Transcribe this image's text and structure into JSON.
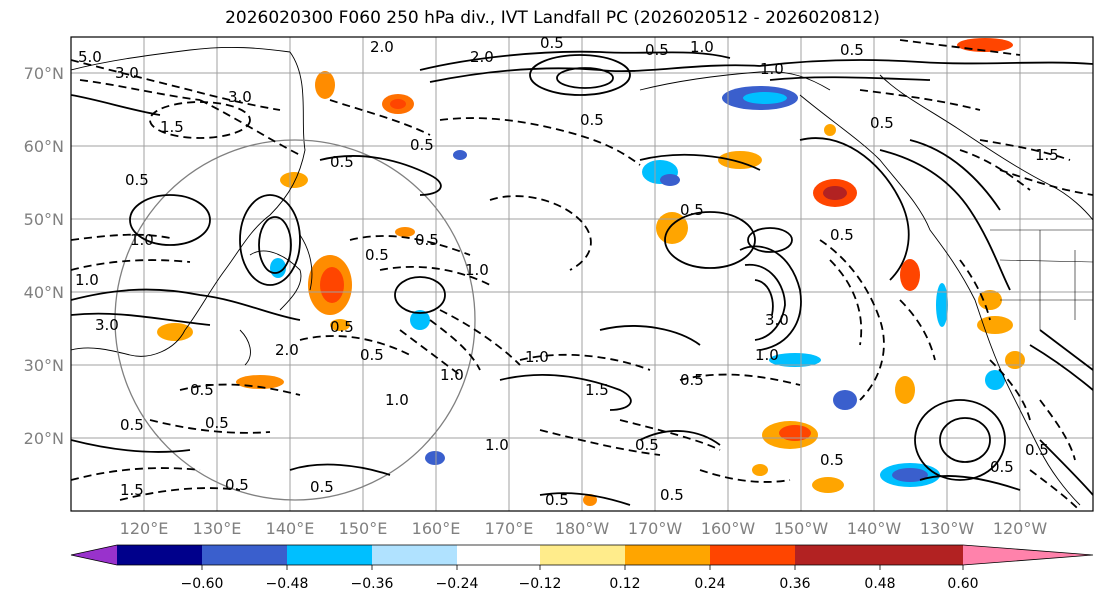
{
  "title": "2026020300 F060 250 hPa div., IVT Landfall PC (2026020512 - 2026020812)",
  "lat_ticks": [
    "70°N",
    "60°N",
    "50°N",
    "40°N",
    "30°N",
    "20°N"
  ],
  "lon_ticks": [
    "120°E",
    "130°E",
    "140°E",
    "150°E",
    "160°E",
    "170°E",
    "180°W",
    "170°W",
    "160°W",
    "150°W",
    "140°W",
    "130°W",
    "120°W"
  ],
  "colorbar": {
    "colors": [
      "#9932cc",
      "#00008b",
      "#3a5fcd",
      "#00bfff",
      "#b0e2ff",
      "#ffffff",
      "#ffec8b",
      "#ffa500",
      "#ff4500",
      "#b22222",
      "#ff82ab"
    ],
    "tick_labels": [
      "−0.60",
      "−0.48",
      "−0.36",
      "−0.24",
      "−0.12",
      "0.12",
      "0.24",
      "0.36",
      "0.48",
      "0.60"
    ]
  },
  "contour_labels": [
    "5.0",
    "3.0",
    "2.0",
    "0.5",
    "0.5",
    "1.0",
    "0.5",
    "1.0",
    "3.0",
    "1.5",
    "0.5",
    "0.5",
    "0.5",
    "1.0",
    "0.5",
    "0.5",
    "0.5",
    "0.5",
    "0.5",
    "1.0",
    "0.5",
    "3.0",
    "1.5",
    "1.0",
    "0.5",
    "2.0",
    "0.5",
    "1.0",
    "1.5",
    "0.5",
    "0.5",
    "1.0",
    "1.0",
    "0.5",
    "0.5",
    "0.5",
    "0.5",
    "3.0",
    "2.0",
    "1.0",
    "1.0",
    "0.5",
    "0.5",
    "0.5",
    "0.5",
    "0.5",
    "1.5",
    "0.5"
  ]
}
